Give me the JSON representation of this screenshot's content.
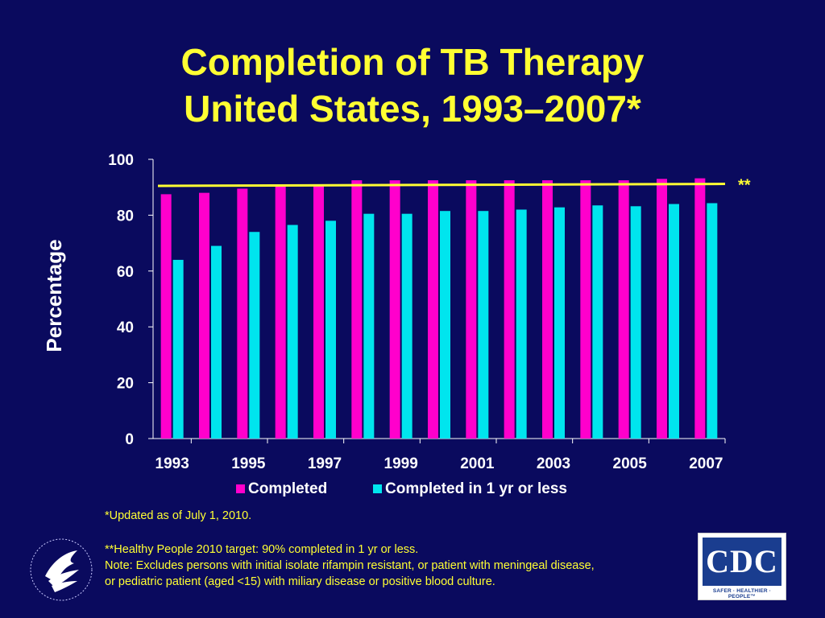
{
  "title": {
    "line1": "Completion of TB Therapy",
    "line2": "United States, 1993–2007*"
  },
  "colors": {
    "background": "#0a0a5e",
    "title": "#ffff33",
    "completed": "#ff00cc",
    "completed_1yr": "#00e5ee",
    "target_line": "#ffff33",
    "axis": "#ffffff"
  },
  "chart_data": {
    "type": "bar",
    "categories": [
      "1993",
      "1994",
      "1995",
      "1996",
      "1997",
      "1998",
      "1999",
      "2000",
      "2001",
      "2002",
      "2003",
      "2004",
      "2005",
      "2006",
      "2007"
    ],
    "x_tick_labels": [
      "1993",
      "1995",
      "1997",
      "1999",
      "2001",
      "2003",
      "2005",
      "2007"
    ],
    "series": [
      {
        "name": "Completed",
        "values": [
          87.5,
          88.0,
          89.5,
          90.5,
          91.0,
          92.5,
          92.5,
          92.5,
          92.5,
          92.5,
          92.5,
          92.5,
          92.5,
          93.0,
          93.2
        ]
      },
      {
        "name": "Completed in 1 yr or less",
        "values": [
          64.0,
          69.0,
          74.0,
          76.5,
          78.0,
          80.5,
          80.5,
          81.5,
          81.5,
          82.0,
          82.8,
          83.5,
          83.2,
          84.0,
          84.3
        ]
      }
    ],
    "target": {
      "label": "**",
      "value_start": 90.5,
      "value_end": 91.2
    },
    "ylabel": "Percentage",
    "ylim": [
      0,
      100
    ],
    "yticks": [
      0,
      20,
      40,
      60,
      80,
      100
    ],
    "legend_position": "bottom",
    "grid": false
  },
  "footnotes": {
    "updated": "*Updated as of July 1, 2010.",
    "target": "**Healthy People 2010 target: 90% completed in 1 yr or less.",
    "note1": "Note: Excludes persons with initial isolate rifampin resistant, or patient with meningeal disease,",
    "note2": "or pediatric patient (aged <15) with miliary disease or positive blood culture."
  },
  "logos": {
    "cdc_text": "CDC",
    "cdc_tagline": "SAFER · HEALTHIER · PEOPLE™",
    "hhs_icon": "hhs-eagle-seal-icon"
  }
}
